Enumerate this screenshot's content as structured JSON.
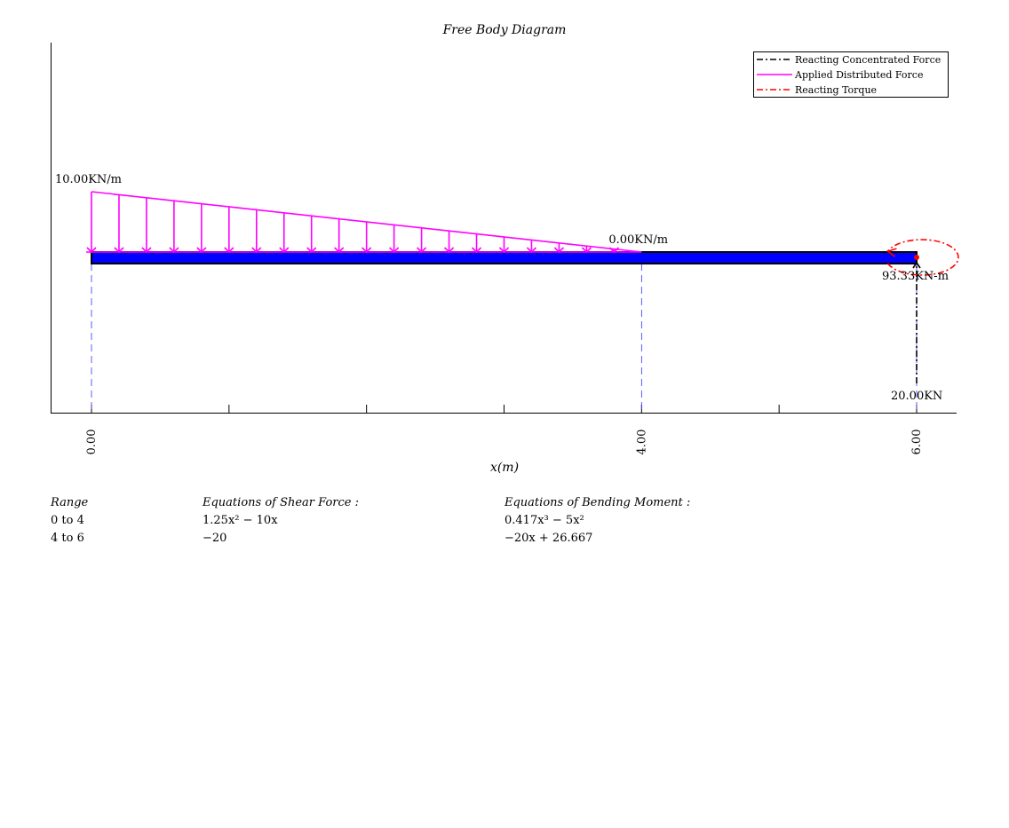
{
  "chart_data": {
    "type": "free-body-diagram",
    "title": "Free Body Diagram",
    "xlabel": "x(m)",
    "xlim": [
      0,
      6
    ],
    "ticks": [
      0,
      1,
      2,
      3,
      4,
      5,
      6
    ],
    "tick_labels": [
      "0.00",
      "",
      "",
      "",
      "4.00",
      "",
      "6.00"
    ],
    "distributed_load": {
      "start_x": 0,
      "end_x": 4,
      "start_value": 10.0,
      "end_value": 0.0,
      "start_label": "10.00KN/m",
      "end_label": "0.00KN/m",
      "arrow_count": 20
    },
    "reaction_force": {
      "x": 6,
      "value": 20.0,
      "label": "20.00KN"
    },
    "reaction_torque": {
      "x": 6,
      "value": 93.33,
      "label": "93.33KN-m"
    },
    "legend": {
      "placement": "top-right",
      "entries": [
        {
          "label": "Reacting Concentrated Force",
          "color": "#000000",
          "style": "dash-dot"
        },
        {
          "label": "Applied Distributed Force",
          "color": "#ff00ff",
          "style": "solid"
        },
        {
          "label": "Reacting Torque",
          "color": "#ff0000",
          "style": "dash-dot"
        }
      ]
    },
    "colors": {
      "beam": "#0000ff",
      "distributed": "#ff00ff",
      "torque": "#ff0000",
      "force": "#000000",
      "guides": "#3333ff"
    }
  },
  "equations": {
    "headers": {
      "range": "Range",
      "shear": "Equations of Shear Force :",
      "moment": "Equations of Bending Moment :"
    },
    "rows": [
      {
        "range": "0 to 4",
        "shear": "1.25x² − 10x",
        "moment": "0.417x³ − 5x²"
      },
      {
        "range": "4 to 6",
        "shear": "−20",
        "moment": "−20x + 26.667"
      }
    ]
  }
}
